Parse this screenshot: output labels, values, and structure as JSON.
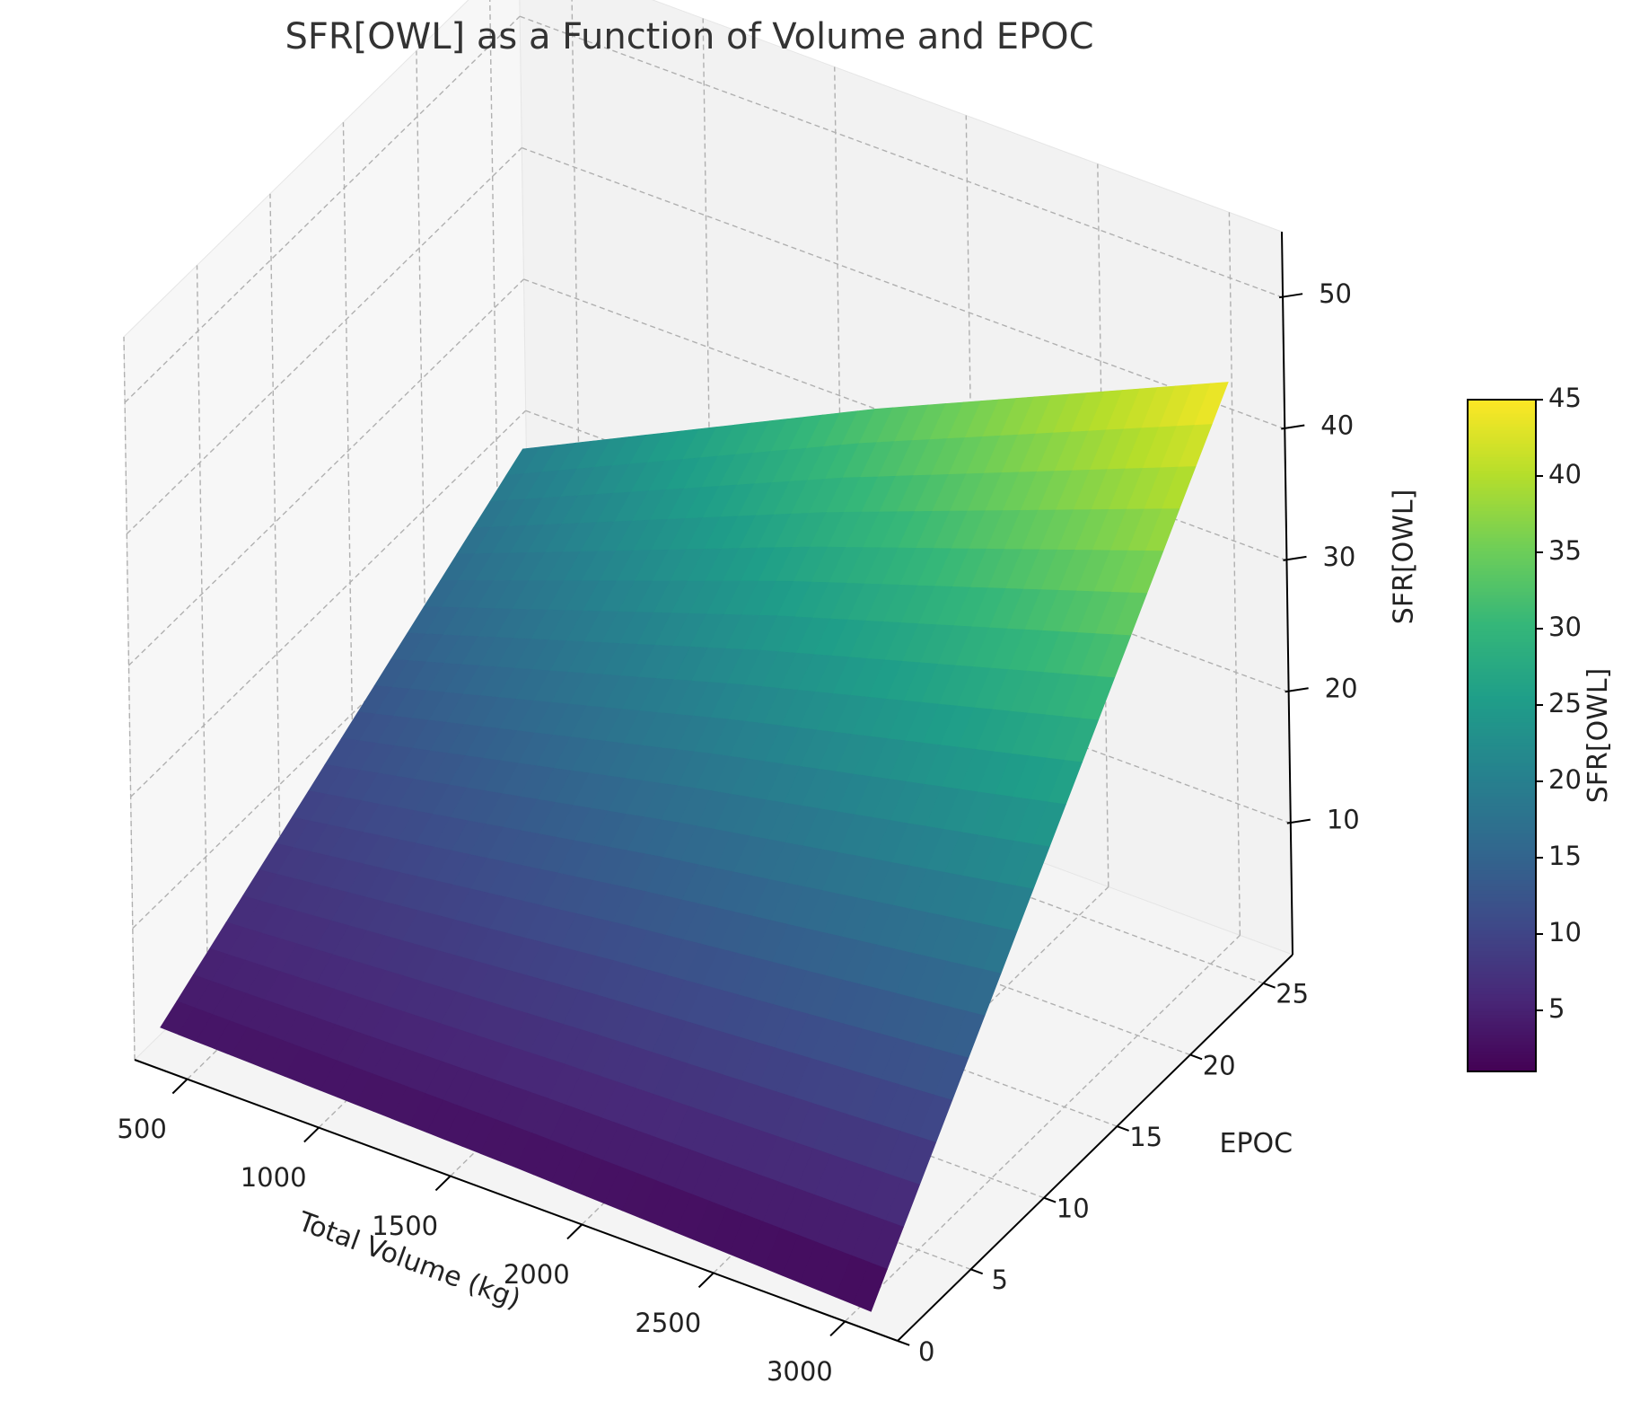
{
  "chart_data": {
    "type": "surface3d",
    "title": "SFR[OWL] as a Function of Volume and EPOC",
    "xlabel": "Total Volume (kg)",
    "ylabel": "EPOC",
    "zlabel": "SFR[OWL]",
    "colorbar_label": "SFR[OWL]",
    "colormap": "viridis",
    "xlim": [
      300,
      3200
    ],
    "ylim": [
      0,
      27
    ],
    "zlim": [
      0,
      55
    ],
    "x_ticks": [
      500,
      1000,
      1500,
      2000,
      2500,
      3000
    ],
    "y_ticks": [
      0,
      5,
      10,
      15,
      20,
      25
    ],
    "z_ticks": [
      10,
      20,
      30,
      40,
      50
    ],
    "colorbar_ticks": [
      5,
      10,
      15,
      20,
      25,
      30,
      35,
      40,
      45
    ],
    "colorbar_range": [
      1,
      45
    ],
    "x_range": [
      400,
      3100
    ],
    "y_range": [
      0,
      25
    ],
    "surface_samples": [
      {
        "x": 400,
        "y": 0,
        "z": 3.2
      },
      {
        "x": 400,
        "y": 25,
        "z": 20.0
      },
      {
        "x": 1750,
        "y": 0,
        "z": 2.5
      },
      {
        "x": 1750,
        "y": 25,
        "z": 33.0
      },
      {
        "x": 3100,
        "y": 0,
        "z": 1.5
      },
      {
        "x": 3100,
        "y": 25,
        "z": 45.0
      }
    ],
    "grid": true
  }
}
